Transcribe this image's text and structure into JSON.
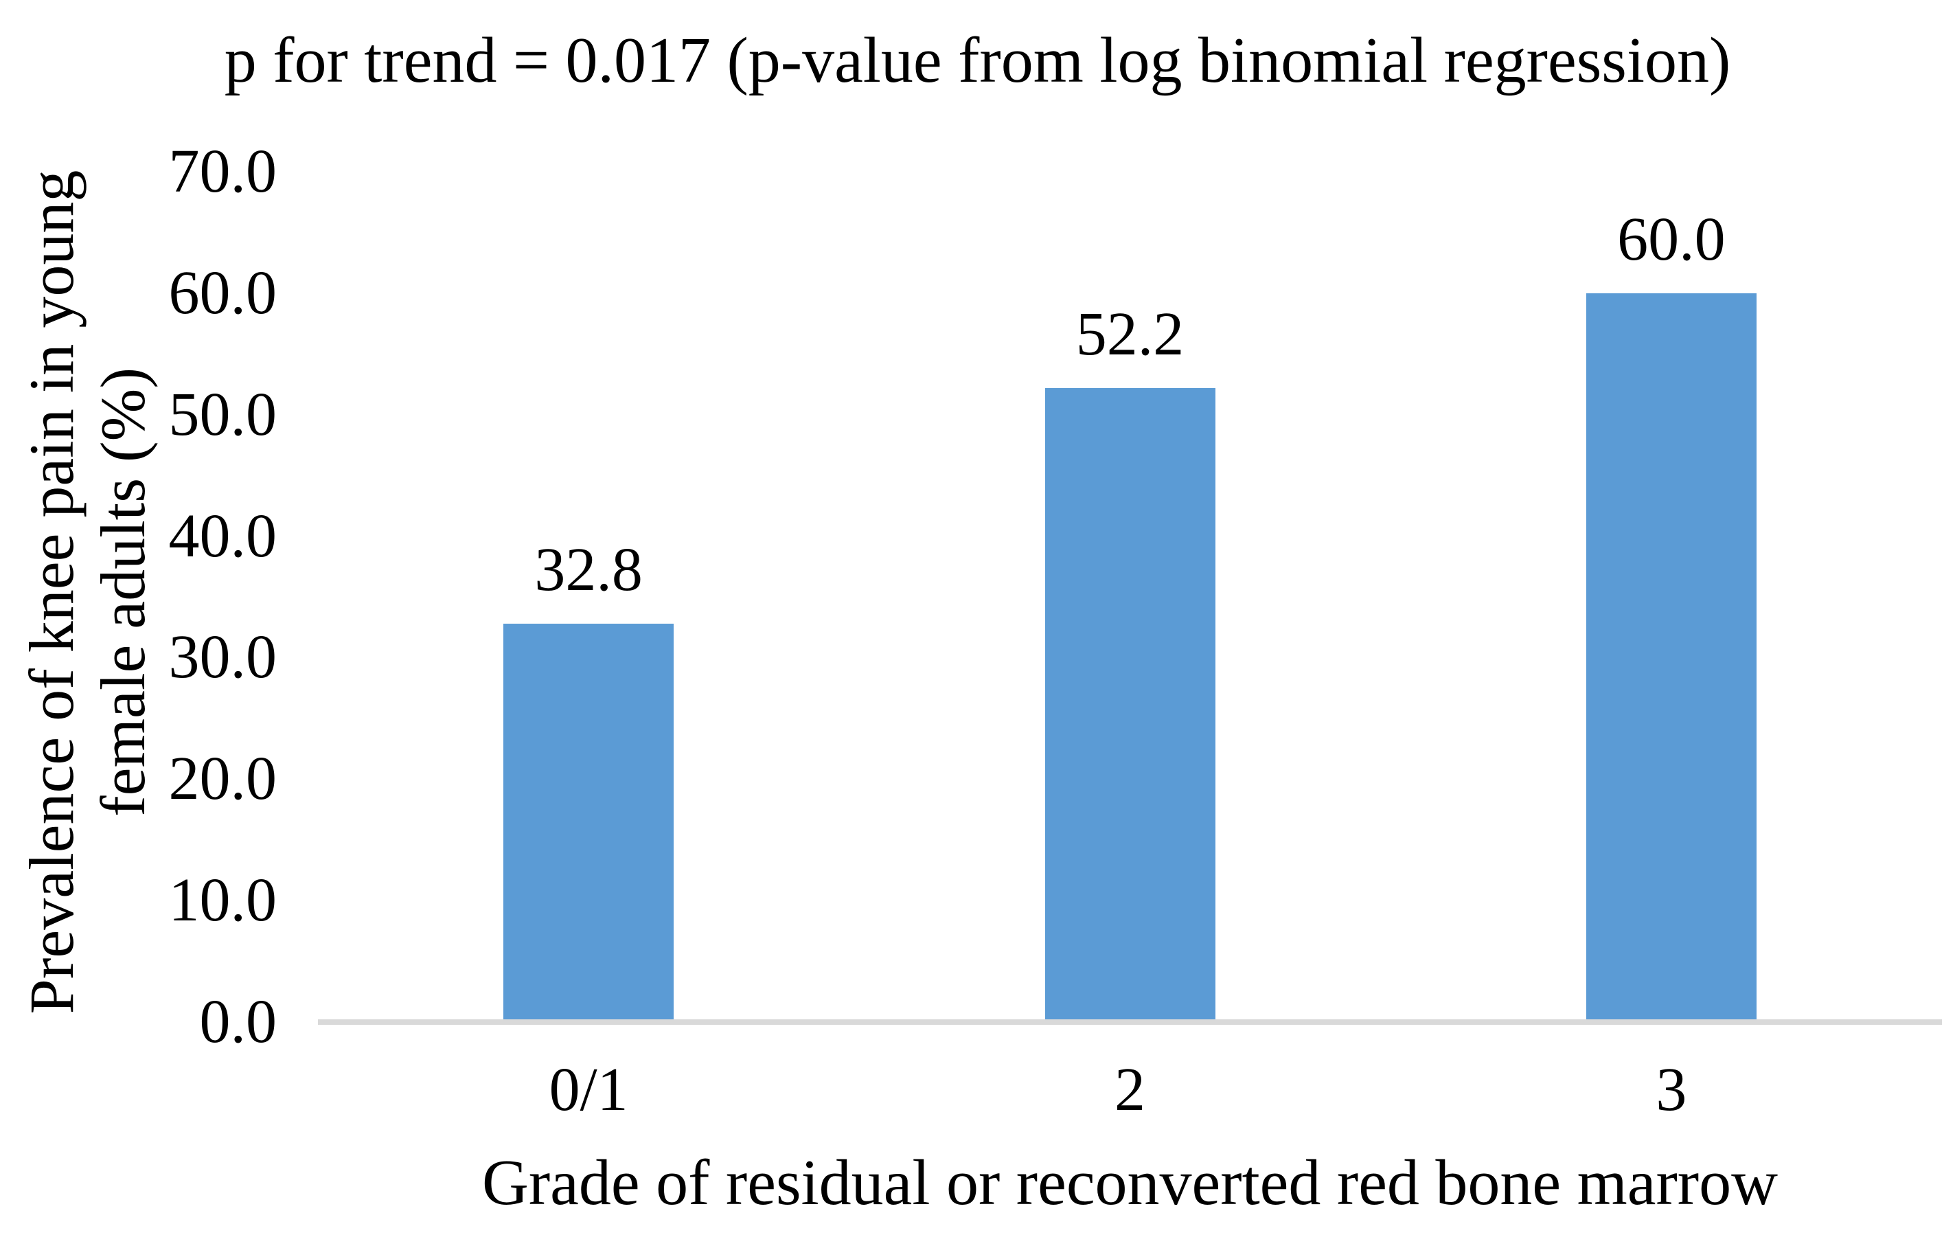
{
  "chart_data": {
    "type": "bar",
    "title": "p for trend = 0.017 (p-value from log binomial regression)",
    "categories": [
      "0/1",
      "2",
      "3"
    ],
    "values": [
      32.8,
      52.2,
      60.0
    ],
    "data_labels": [
      "32.8",
      "52.2",
      "60.0"
    ],
    "xlabel": "Grade of residual or reconverted red bone marrow",
    "ylabel_line1": "Prevalence of knee pain in young",
    "ylabel_line2": "female adults (%)",
    "y_ticks": [
      "0.0",
      "10.0",
      "20.0",
      "30.0",
      "40.0",
      "50.0",
      "60.0",
      "70.0"
    ],
    "ylim": [
      0,
      70
    ],
    "grid": false,
    "legend": false,
    "bar_color": "#5b9bd5",
    "axis_line_color": "#d9d9d9",
    "text_color": "#000000"
  }
}
